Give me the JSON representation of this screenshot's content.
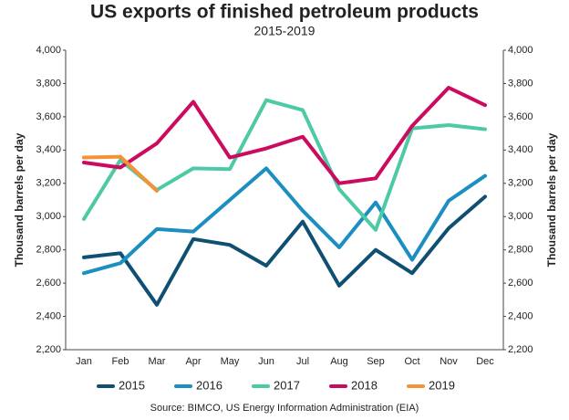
{
  "chart_data": {
    "type": "line",
    "title": "US exports of finished petroleum products",
    "subtitle": "2015-2019",
    "ylabel": "Thousand barrels per day",
    "y2label": "Thousand barrels per day",
    "source": "Source: BIMCO, US Energy Information Administration (EIA)",
    "categories": [
      "Jan",
      "Feb",
      "Mar",
      "Apr",
      "May",
      "Jun",
      "Jul",
      "Aug",
      "Sep",
      "Oct",
      "Nov",
      "Dec"
    ],
    "series": [
      {
        "name": "2015",
        "color": "#0f5072",
        "values": [
          2755,
          2780,
          2470,
          2865,
          2830,
          2705,
          2970,
          2585,
          2800,
          2660,
          2930,
          3120
        ]
      },
      {
        "name": "2016",
        "color": "#1b8ec2",
        "values": [
          2660,
          2720,
          2925,
          2910,
          3100,
          3290,
          3035,
          2815,
          3085,
          2740,
          3095,
          3245
        ]
      },
      {
        "name": "2017",
        "color": "#4ec9a6",
        "values": [
          2985,
          3340,
          3160,
          3290,
          3285,
          3700,
          3640,
          3165,
          2920,
          3530,
          3550,
          3525
        ]
      },
      {
        "name": "2018",
        "color": "#cc0b5f",
        "values": [
          3325,
          3295,
          3440,
          3690,
          3355,
          3410,
          3480,
          3200,
          3230,
          3545,
          3775,
          3670
        ]
      },
      {
        "name": "2019",
        "color": "#f39237",
        "values": [
          3355,
          3360,
          3155,
          null,
          null,
          null,
          null,
          null,
          null,
          null,
          null,
          null
        ]
      }
    ],
    "ylim": [
      2200,
      4000
    ],
    "yticks": [
      {
        "value": 2200,
        "label": "2,200"
      },
      {
        "value": 2400,
        "label": "2,400"
      },
      {
        "value": 2600,
        "label": "2,600"
      },
      {
        "value": 2800,
        "label": "2,800"
      },
      {
        "value": 3000,
        "label": "3,000"
      },
      {
        "value": 3200,
        "label": "3,200"
      },
      {
        "value": 3400,
        "label": "3,400"
      },
      {
        "value": 3600,
        "label": "3,600"
      },
      {
        "value": 3800,
        "label": "3,800"
      },
      {
        "value": 4000,
        "label": "4,000"
      }
    ],
    "y2lim": [
      2200,
      4000
    ],
    "y2ticks": [
      {
        "value": 2200,
        "label": "2,200"
      },
      {
        "value": 2400,
        "label": "2,400"
      },
      {
        "value": 2600,
        "label": "2,600"
      },
      {
        "value": 2800,
        "label": "2,800"
      },
      {
        "value": 3000,
        "label": "3,000"
      },
      {
        "value": 3200,
        "label": "3,200"
      },
      {
        "value": 3400,
        "label": "3,400"
      },
      {
        "value": 3600,
        "label": "3,600"
      },
      {
        "value": 3800,
        "label": "3,800"
      },
      {
        "value": 4000,
        "label": "4,000"
      }
    ],
    "grid": false,
    "legend": "bottom"
  }
}
